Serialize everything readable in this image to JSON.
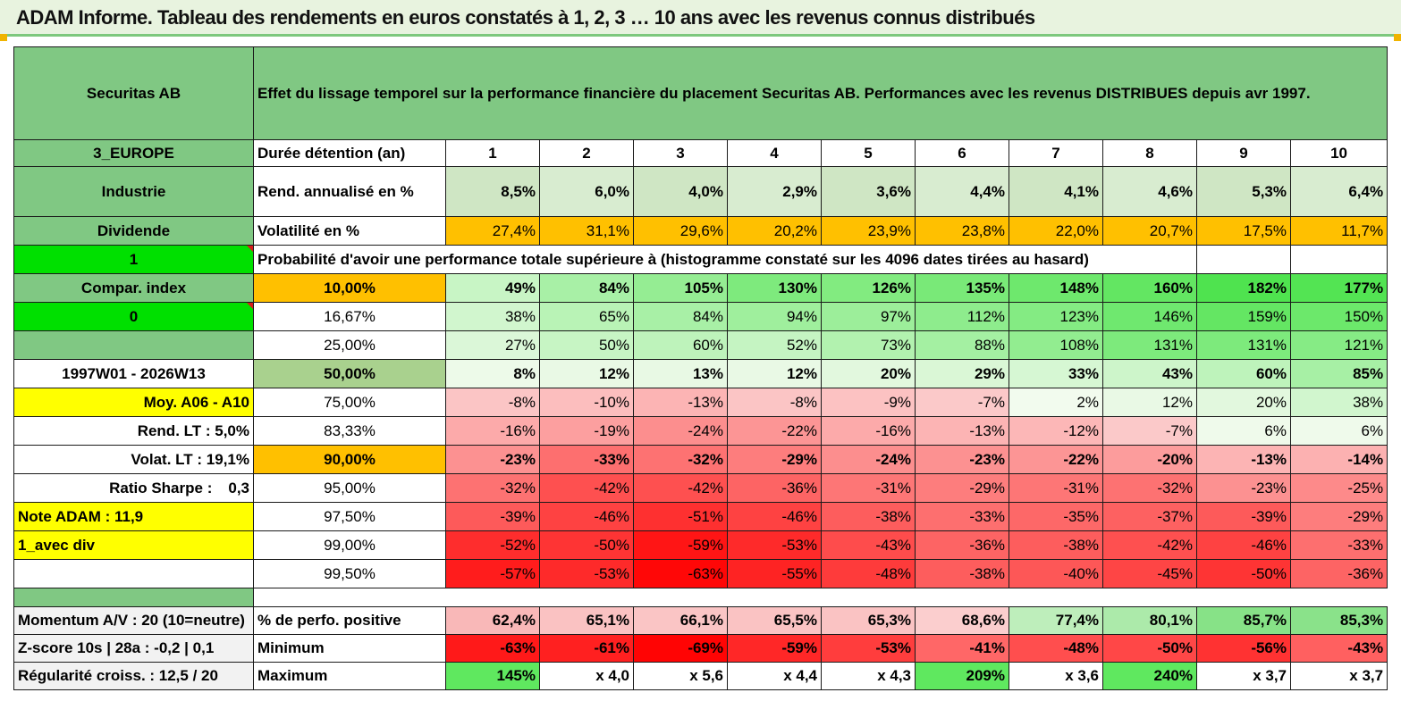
{
  "title": "ADAM Informe. Tableau des rendements en euros constatés à 1, 2, 3 … 10 ans avec les revenus connus distribués",
  "company": "Securitas AB",
  "heading": "Effet du lissage temporel sur la performance financière du placement Securitas AB. Performances avec les revenus DISTRIBUES depuis avr 1997.",
  "colors": {
    "green_header": "#80c883",
    "bright_green": "#00e000",
    "orange": "#ffc000",
    "yellow": "#ffff00",
    "pale_green": "#cfe6c4"
  },
  "left_panel": {
    "region": "3_EUROPE",
    "sector": "Industrie",
    "type": "Dividende",
    "flag1": "1",
    "compar_index": "Compar. index",
    "flag0": "0",
    "period": "1997W01 - 2026W13",
    "moy": "Moy. A06 - A10",
    "rend_lt": "Rend. LT :   5,0%",
    "volat_lt": "Volat. LT :   19,1%",
    "sharpe_label": "Ratio Sharpe :",
    "sharpe_value": "0,3",
    "note": "Note ADAM : 11,9",
    "avec_div": "1_avec div",
    "momentum": "Momentum A/V : 20 (10=neutre)",
    "zscore": "Z-score 10s | 28a : -0,2 | 0,1",
    "regularite": "Régularité croiss. : 12,5 / 20"
  },
  "labels": {
    "duree": "Durée détention (an)",
    "rend": "Rend. annualisé en %",
    "vol": "Volatilité en %",
    "proba": "Probabilité d'avoir une performance totale supérieure à (histogramme constaté sur les 4096 dates tirées au hasard)",
    "pos": "% de perfo. positive",
    "min": "Minimum",
    "max": "Maximum"
  },
  "years": [
    "1",
    "2",
    "3",
    "4",
    "5",
    "6",
    "7",
    "8",
    "9",
    "10"
  ],
  "rend": [
    "8,5%",
    "6,0%",
    "4,0%",
    "2,9%",
    "3,6%",
    "4,4%",
    "4,1%",
    "4,6%",
    "5,3%",
    "6,4%"
  ],
  "vol": [
    "27,4%",
    "31,1%",
    "29,6%",
    "20,2%",
    "23,9%",
    "23,8%",
    "22,0%",
    "20,7%",
    "17,5%",
    "11,7%"
  ],
  "prob_rows": [
    {
      "p": "10,00%",
      "v": [
        "49%",
        "84%",
        "105%",
        "130%",
        "126%",
        "135%",
        "148%",
        "160%",
        "182%",
        "177%"
      ]
    },
    {
      "p": "16,67%",
      "v": [
        "38%",
        "65%",
        "84%",
        "94%",
        "97%",
        "112%",
        "123%",
        "146%",
        "159%",
        "150%"
      ]
    },
    {
      "p": "25,00%",
      "v": [
        "27%",
        "50%",
        "60%",
        "52%",
        "73%",
        "88%",
        "108%",
        "131%",
        "131%",
        "121%"
      ]
    },
    {
      "p": "50,00%",
      "v": [
        "8%",
        "12%",
        "13%",
        "12%",
        "20%",
        "29%",
        "33%",
        "43%",
        "60%",
        "85%"
      ]
    },
    {
      "p": "75,00%",
      "v": [
        "-8%",
        "-10%",
        "-13%",
        "-8%",
        "-9%",
        "-7%",
        "2%",
        "12%",
        "20%",
        "38%"
      ]
    },
    {
      "p": "83,33%",
      "v": [
        "-16%",
        "-19%",
        "-24%",
        "-22%",
        "-16%",
        "-13%",
        "-12%",
        "-7%",
        "6%",
        "6%"
      ]
    },
    {
      "p": "90,00%",
      "v": [
        "-23%",
        "-33%",
        "-32%",
        "-29%",
        "-24%",
        "-23%",
        "-22%",
        "-20%",
        "-13%",
        "-14%"
      ]
    },
    {
      "p": "95,00%",
      "v": [
        "-32%",
        "-42%",
        "-42%",
        "-36%",
        "-31%",
        "-29%",
        "-31%",
        "-32%",
        "-23%",
        "-25%"
      ]
    },
    {
      "p": "97,50%",
      "v": [
        "-39%",
        "-46%",
        "-51%",
        "-46%",
        "-38%",
        "-33%",
        "-35%",
        "-37%",
        "-39%",
        "-29%"
      ]
    },
    {
      "p": "99,00%",
      "v": [
        "-52%",
        "-50%",
        "-59%",
        "-53%",
        "-43%",
        "-36%",
        "-38%",
        "-42%",
        "-46%",
        "-33%"
      ]
    },
    {
      "p": "99,50%",
      "v": [
        "-57%",
        "-53%",
        "-63%",
        "-55%",
        "-48%",
        "-38%",
        "-40%",
        "-45%",
        "-50%",
        "-36%"
      ]
    }
  ],
  "pos": [
    "62,4%",
    "65,1%",
    "66,1%",
    "65,5%",
    "65,3%",
    "68,6%",
    "77,4%",
    "80,1%",
    "85,7%",
    "85,3%"
  ],
  "min": [
    "-63%",
    "-61%",
    "-69%",
    "-59%",
    "-53%",
    "-41%",
    "-48%",
    "-50%",
    "-56%",
    "-43%"
  ],
  "max": [
    "145%",
    "x 4,0",
    "x 5,6",
    "x 4,4",
    "x 4,3",
    "209%",
    "x 3,6",
    "240%",
    "x 3,7",
    "x 3,7"
  ]
}
